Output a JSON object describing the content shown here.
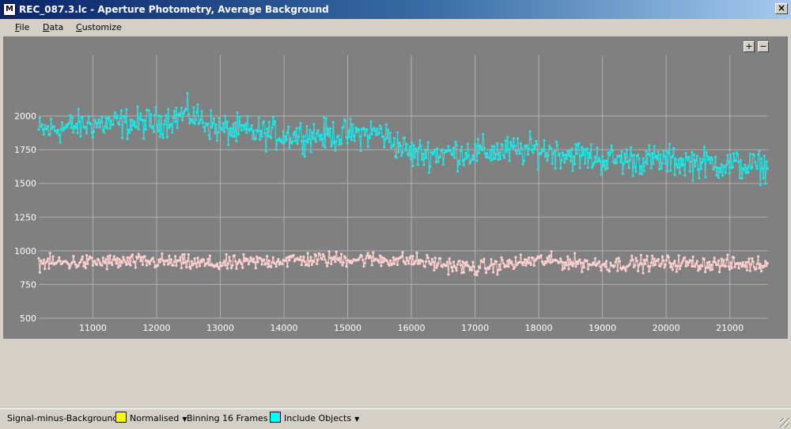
{
  "window": {
    "title": "REC_087.3.lc - Aperture Photometry, Average Background",
    "icon": "app-logo-icon",
    "close_glyph": "×"
  },
  "menu": [
    {
      "label": "File",
      "underline": "F",
      "rest": "ile"
    },
    {
      "label": "Data",
      "underline": "D",
      "rest": "ata"
    },
    {
      "label": "Customize",
      "underline": "C",
      "rest": "ustomize"
    }
  ],
  "zoom": {
    "in": "+",
    "out": "−"
  },
  "status": {
    "mode": "Signal-minus-Background",
    "normalised": "Normalised",
    "binning": "Binning 16 Frames",
    "objects": "Include Objects",
    "normalised_color": "#ffff00",
    "objects_color": "#00ffff"
  },
  "chart_data": {
    "type": "line",
    "xlim": [
      10150,
      21600
    ],
    "ylim": [
      500,
      2450
    ],
    "x_ticks": [
      11000,
      12000,
      13000,
      14000,
      15000,
      16000,
      17000,
      18000,
      19000,
      20000,
      21000
    ],
    "y_ticks": [
      500,
      750,
      1000,
      1250,
      1500,
      1750,
      2000
    ],
    "grid": true,
    "series": [
      {
        "color": "#22e5e5",
        "step": 16,
        "x_start": 10150,
        "x_end": 21600,
        "trend": [
          [
            10150,
            1890
          ],
          [
            11000,
            1940
          ],
          [
            12000,
            1950
          ],
          [
            12500,
            2020
          ],
          [
            13000,
            1900
          ],
          [
            14000,
            1860
          ],
          [
            15000,
            1860
          ],
          [
            15500,
            1880
          ],
          [
            16000,
            1720
          ],
          [
            17000,
            1730
          ],
          [
            18000,
            1750
          ],
          [
            19000,
            1680
          ],
          [
            20000,
            1670
          ],
          [
            21000,
            1640
          ],
          [
            21600,
            1620
          ]
        ],
        "spread": 120
      },
      {
        "color": "#ffd0d0",
        "step": 16,
        "x_start": 10150,
        "x_end": 21600,
        "trend": [
          [
            10150,
            910
          ],
          [
            12000,
            920
          ],
          [
            13000,
            900
          ],
          [
            14000,
            930
          ],
          [
            15000,
            940
          ],
          [
            16000,
            930
          ],
          [
            17000,
            870
          ],
          [
            18000,
            930
          ],
          [
            19000,
            900
          ],
          [
            20000,
            910
          ],
          [
            21000,
            900
          ],
          [
            21600,
            900
          ]
        ],
        "spread": 60
      }
    ]
  }
}
